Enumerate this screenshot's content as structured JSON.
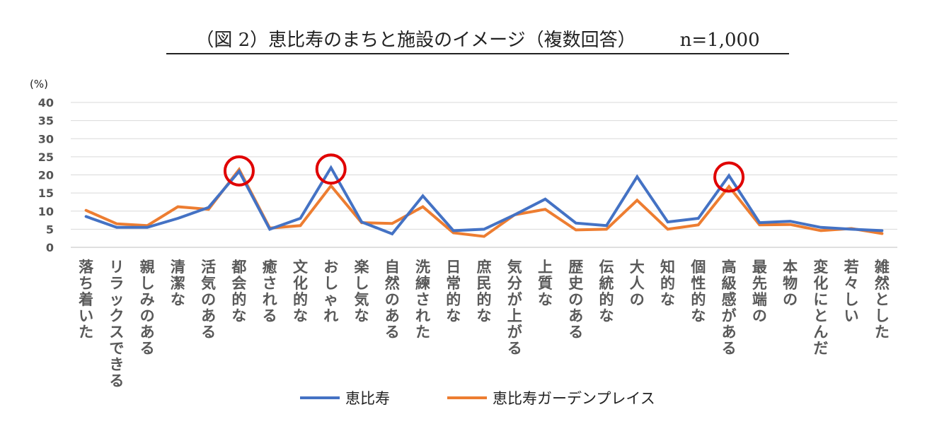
{
  "chart_data": {
    "type": "line",
    "title": "（図 2）恵比寿のまちと施設のイメージ（複数回答）",
    "sample_size": "n=1,000",
    "ylabel": "(%)",
    "ylim": [
      0,
      40
    ],
    "yticks": [
      "0",
      "5",
      "10",
      "15",
      "20",
      "25",
      "30",
      "35",
      "40"
    ],
    "ytick_values": [
      0,
      5,
      10,
      15,
      20,
      25,
      30,
      35,
      40
    ],
    "grid": true,
    "legend_position": "bottom",
    "categories": [
      "落ち着いた",
      "リラックスできる",
      "親しみのある",
      "清潔な",
      "活気のある",
      "都会的な",
      "癒される",
      "文化的な",
      "おしゃれ",
      "楽し気な",
      "自然のある",
      "洗練された",
      "日常的な",
      "庶民的な",
      "気分が上がる",
      "上質な",
      "歴史のある",
      "伝統的な",
      "大人の",
      "知的な",
      "個性的な",
      "高級感がある",
      "最先端の",
      "本物の",
      "変化にとんだ",
      "若々しい",
      "雑然とした"
    ],
    "series": [
      {
        "name": "恵比寿",
        "color": "#4472C4",
        "values": [
          8.5,
          5.5,
          5.5,
          8.0,
          11.0,
          21.0,
          5.0,
          8.0,
          22.0,
          7.0,
          3.7,
          14.2,
          4.6,
          5.0,
          9.0,
          13.3,
          6.7,
          6.0,
          19.5,
          7.0,
          8.0,
          19.8,
          6.8,
          7.2,
          5.5,
          5.0,
          4.6
        ]
      },
      {
        "name": "恵比寿ガーデンプレイス",
        "color": "#ED7D31",
        "values": [
          10.2,
          6.5,
          6.0,
          11.2,
          10.5,
          21.5,
          5.3,
          6.0,
          17.0,
          6.8,
          6.6,
          11.2,
          4.0,
          3.0,
          9.0,
          10.5,
          4.8,
          5.0,
          13.0,
          5.0,
          6.2,
          16.8,
          6.2,
          6.3,
          4.6,
          5.2,
          3.8
        ]
      }
    ],
    "highlighted_categories": [
      "都会的な",
      "おしゃれ",
      "高級感がある"
    ],
    "highlight_color": "#E00000"
  }
}
